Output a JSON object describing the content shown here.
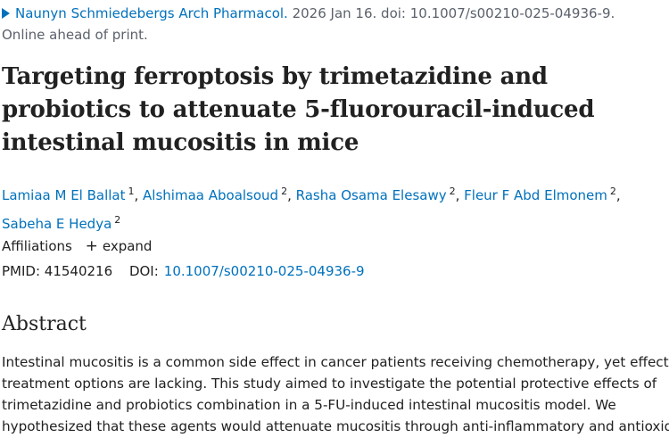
{
  "citation": {
    "journal": "Naunyn Schmiedebergs Arch Pharmacol.",
    "date_doi": "2026 Jan 16. doi: 10.1007/s00210-025-04936-9.",
    "status": "Online ahead of print."
  },
  "title": "Targeting ferroptosis by trimetazidine and probiotics to attenuate 5-fluorouracil-induced intestinal mucositis in mice",
  "authors": [
    {
      "name": "Lamiaa M El Ballat",
      "aff": "1"
    },
    {
      "name": "Alshimaa Aboalsoud",
      "aff": "2"
    },
    {
      "name": "Rasha Osama Elesawy",
      "aff": "2"
    },
    {
      "name": "Fleur F Abd Elmonem",
      "aff": "2"
    },
    {
      "name": "Sabeha E Hedya",
      "aff": "2"
    }
  ],
  "affiliations": {
    "label": "Affiliations",
    "expand_label": "expand"
  },
  "ids": {
    "pmid_label": "PMID:",
    "pmid": "41540216",
    "doi_label": "DOI:",
    "doi": "10.1007/s00210-025-04936-9"
  },
  "abstract": {
    "heading": "Abstract",
    "lines": [
      "Intestinal mucositis is a common side effect in cancer patients receiving chemotherapy, yet effective",
      "treatment options are lacking. This study aimed to investigate the potential protective effects of",
      "trimetazidine and probiotics combination in a 5-FU-induced intestinal mucositis model. We",
      "hypothesized that these agents would attenuate mucositis through anti-inflammatory and antioxidant"
    ]
  },
  "colors": {
    "link": "#0071bc",
    "text": "#212121",
    "muted": "#5b616b"
  },
  "icons": [
    "triangle-right-icon",
    "plus-icon"
  ]
}
